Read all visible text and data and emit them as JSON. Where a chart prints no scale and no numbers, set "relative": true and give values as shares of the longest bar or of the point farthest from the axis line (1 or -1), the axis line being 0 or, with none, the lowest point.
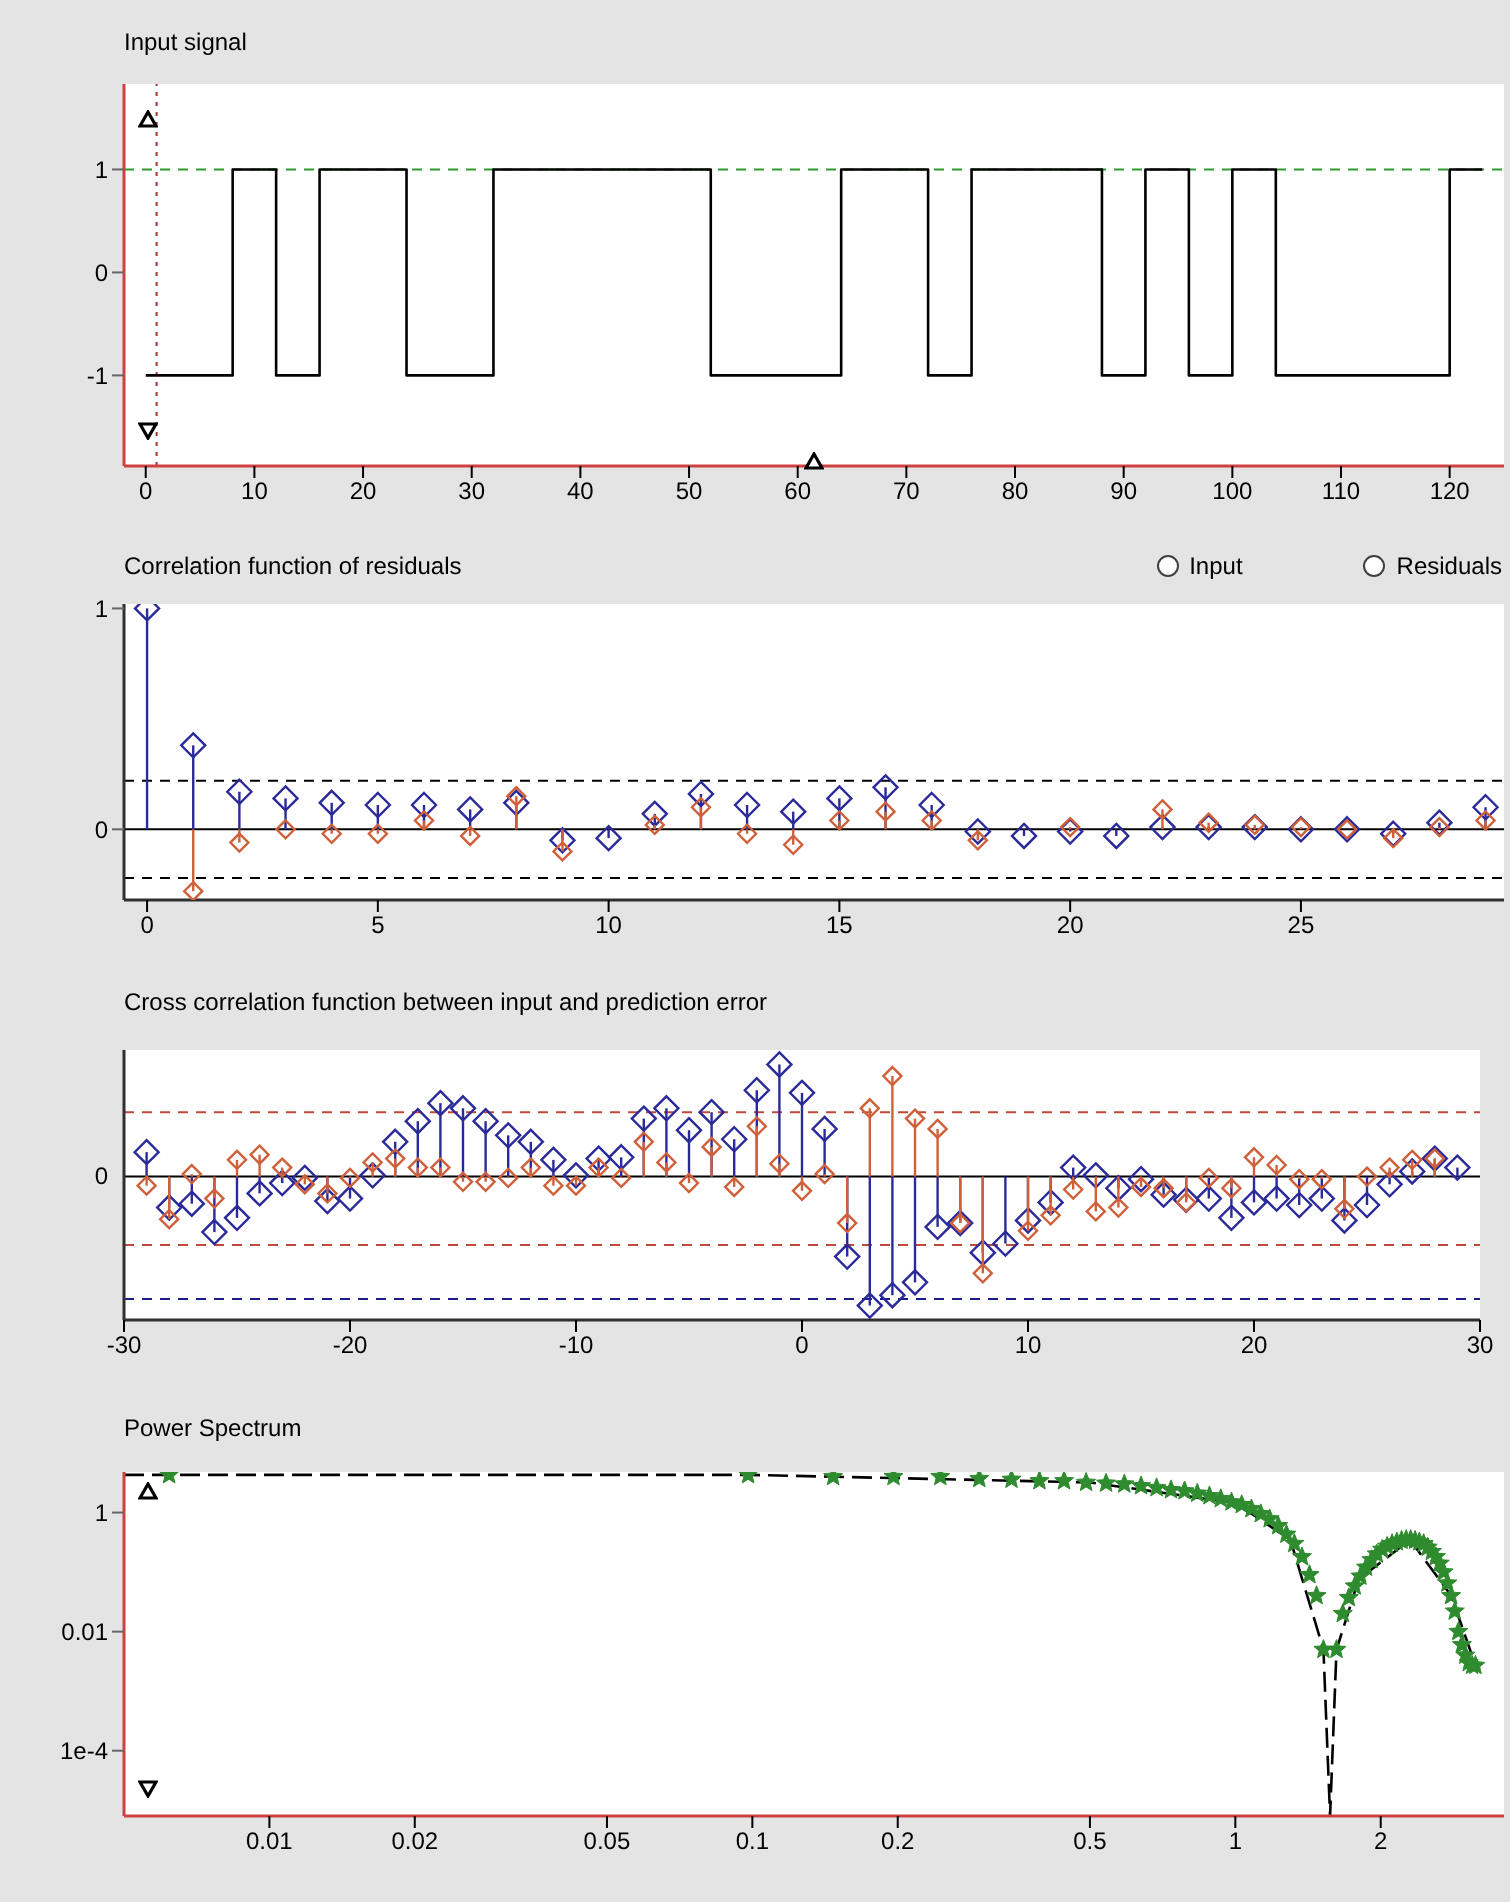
{
  "chart_data": [
    {
      "type": "step",
      "title": "Input signal",
      "x": [
        0,
        8,
        12,
        16,
        24,
        32,
        52,
        64,
        72,
        76,
        88,
        92,
        96,
        100,
        104,
        120,
        123
      ],
      "series": [
        {
          "color": "#000000",
          "values": [
            -1,
            1,
            -1,
            1,
            -1,
            1,
            -1,
            1,
            -1,
            1,
            -1,
            1,
            -1,
            1,
            -1,
            1,
            1
          ]
        }
      ],
      "xlim": [
        -2,
        125
      ],
      "xticks": [
        0,
        10,
        20,
        30,
        40,
        50,
        60,
        70,
        80,
        90,
        100,
        110,
        120
      ],
      "ylim": [
        -1.88,
        1.83
      ],
      "yticks": [
        -1,
        0,
        1
      ],
      "ref_lines": [
        {
          "axis": "y",
          "value": 1,
          "color": "#2e9a2e",
          "line_style": "dashed"
        },
        {
          "axis": "x",
          "value": 1,
          "color": "#b03030",
          "line_style": "dotted"
        }
      ]
    },
    {
      "type": "lollipop",
      "title": "Correlation function of residuals",
      "marker": "diamond",
      "x": [
        0,
        1,
        2,
        3,
        4,
        5,
        6,
        7,
        8,
        9,
        10,
        11,
        12,
        13,
        14,
        15,
        16,
        17,
        18,
        19,
        20,
        21,
        22,
        23,
        24,
        25,
        26,
        27,
        28,
        29
      ],
      "series": [
        {
          "color": "#2a2a9a",
          "values": [
            1.0,
            0.38,
            0.17,
            0.14,
            0.12,
            0.11,
            0.11,
            0.09,
            0.12,
            -0.05,
            -0.04,
            0.07,
            0.16,
            0.11,
            0.08,
            0.14,
            0.19,
            0.11,
            -0.01,
            -0.03,
            -0.01,
            -0.03,
            0.01,
            0.01,
            0.01,
            0,
            0,
            -0.02,
            0.03,
            0.1
          ]
        },
        {
          "color": "#d0603a",
          "values": [
            null,
            -0.28,
            -0.06,
            0,
            -0.02,
            -0.02,
            0.04,
            -0.03,
            0.15,
            -0.1,
            null,
            0.02,
            0.1,
            -0.02,
            -0.07,
            0.04,
            0.08,
            0.04,
            -0.05,
            null,
            0.01,
            null,
            0.09,
            0.03,
            0.02,
            0.01,
            0,
            -0.04,
            0.01,
            0.04
          ]
        }
      ],
      "xlim": [
        -0.5,
        29.4
      ],
      "xticks": [
        0,
        5,
        10,
        15,
        20,
        25
      ],
      "ylim": [
        -0.32,
        1.02
      ],
      "yticks": [
        0,
        1
      ],
      "ref_lines": [
        {
          "axis": "y",
          "value": 0,
          "color": "#000000"
        },
        {
          "axis": "y",
          "value": 0.22,
          "color": "#000000",
          "line_style": "dashed"
        },
        {
          "axis": "y",
          "value": -0.22,
          "color": "#000000",
          "line_style": "dashed"
        }
      ],
      "annotations": [
        "Input",
        "Residuals"
      ]
    },
    {
      "type": "lollipop",
      "title": "Cross correlation function between input and prediction error",
      "marker": "diamond",
      "relative": true,
      "x": [
        -29,
        -28,
        -27,
        -26,
        -25,
        -24,
        -23,
        -22,
        -21,
        -20,
        -19,
        -18,
        -17,
        -16,
        -15,
        -14,
        -13,
        -12,
        -11,
        -10,
        -9,
        -8,
        -7,
        -6,
        -5,
        -4,
        -3,
        -2,
        -1,
        0,
        1,
        2,
        3,
        4,
        5,
        6,
        7,
        8,
        9,
        10,
        11,
        12,
        13,
        14,
        15,
        16,
        17,
        18,
        19,
        20,
        21,
        22,
        23,
        24,
        25,
        26,
        27,
        28,
        29
      ],
      "series": [
        {
          "color": "#2a2a9a",
          "values": [
            0.19,
            -0.24,
            -0.21,
            -0.43,
            -0.32,
            -0.13,
            -0.05,
            -0.01,
            -0.19,
            -0.17,
            0.01,
            0.27,
            0.43,
            0.57,
            0.53,
            0.43,
            0.32,
            0.27,
            0.13,
            0.01,
            0.14,
            0.15,
            0.45,
            0.53,
            0.36,
            0.5,
            0.29,
            0.67,
            0.87,
            0.65,
            0.37,
            -0.62,
            -1,
            -0.92,
            -0.82,
            -0.39,
            -0.36,
            -0.59,
            -0.52,
            -0.34,
            -0.2,
            0.07,
            0.01,
            -0.09,
            -0.02,
            -0.14,
            -0.18,
            -0.17,
            -0.32,
            -0.2,
            -0.17,
            -0.22,
            -0.17,
            -0.34,
            -0.22,
            -0.06,
            0.04,
            0.14,
            0.07
          ]
        },
        {
          "color": "#d0603a",
          "values": [
            -0.07,
            -0.33,
            0.02,
            -0.17,
            0.13,
            0.17,
            0.07,
            -0.06,
            -0.13,
            -0.01,
            0.11,
            0.14,
            0.07,
            0.07,
            -0.04,
            -0.04,
            -0.01,
            0.07,
            -0.07,
            -0.07,
            0.07,
            -0.01,
            0.27,
            0.11,
            -0.05,
            0.23,
            -0.08,
            0.39,
            0.1,
            -0.11,
            0.02,
            -0.36,
            0.53,
            0.78,
            0.45,
            0.37,
            -0.36,
            -0.75,
            null,
            -0.42,
            -0.3,
            -0.1,
            -0.27,
            -0.24,
            -0.08,
            -0.09,
            -0.2,
            -0.01,
            -0.09,
            0.15,
            0.09,
            -0.02,
            -0.02,
            -0.25,
            0,
            0.07,
            0.13,
            0.14,
            null
          ]
        }
      ],
      "xlim": [
        -30,
        30
      ],
      "xticks": [
        -30,
        -20,
        -10,
        0,
        10,
        20,
        30
      ],
      "ref_lines": [
        {
          "axis": "y",
          "value": 0,
          "color": "#000000"
        },
        {
          "axis": "y",
          "value": 0.5,
          "color": "#c04a3a",
          "line_style": "dashed"
        },
        {
          "axis": "y",
          "value": -0.53,
          "color": "#c04a3a",
          "line_style": "dashed"
        },
        {
          "axis": "y",
          "value": -0.95,
          "color": "#1a1a8a",
          "line_style": "dashed"
        }
      ],
      "annotations": [
        "0"
      ]
    },
    {
      "type": "scatter",
      "title": "Power Spectrum",
      "log": "xy",
      "series": [
        {
          "color": "#000000",
          "type": "line",
          "line_style": "dashed",
          "x": [
            0.005,
            0.098,
            0.5,
            1.0,
            1.3,
            1.522,
            1.571,
            1.62,
            1.8,
            2.3,
            2.8,
            3.142
          ],
          "values": [
            4.3,
            4.3,
            3.2,
            1.45,
            0.35,
            0.005,
            8e-06,
            0.005,
            0.075,
            0.35,
            0.04,
            0.0027
          ]
        },
        {
          "color": "#2e8b2e",
          "marker": "star",
          "x": [
            0.0062,
            0.098,
            0.147,
            0.196,
            0.245,
            0.295,
            0.344,
            0.393,
            0.442,
            0.491,
            0.54,
            0.589,
            0.638,
            0.687,
            0.736,
            0.785,
            0.834,
            0.884,
            0.933,
            0.982,
            1.031,
            1.08,
            1.129,
            1.178,
            1.227,
            1.276,
            1.325,
            1.374,
            1.424,
            1.473,
            1.522,
            1.62,
            1.669,
            1.718,
            1.767,
            1.816,
            1.865,
            1.914,
            1.963,
            2.013,
            2.062,
            2.111,
            2.16,
            2.209,
            2.258,
            2.307,
            2.356,
            2.405,
            2.454,
            2.503,
            2.553,
            2.602,
            2.651,
            2.7,
            2.749,
            2.798,
            2.847,
            2.896,
            2.945,
            2.994,
            3.043,
            3.093,
            3.142
          ],
          "values": [
            4.3,
            4.3,
            4.0,
            4.0,
            4.0,
            3.7,
            3.6,
            3.4,
            3.4,
            3.2,
            3.1,
            3.0,
            2.8,
            2.6,
            2.4,
            2.3,
            2.1,
            1.9,
            1.7,
            1.5,
            1.35,
            1.15,
            0.95,
            0.78,
            0.6,
            0.43,
            0.3,
            0.18,
            0.09,
            0.04,
            0.005,
            0.005,
            0.02,
            0.037,
            0.058,
            0.085,
            0.12,
            0.16,
            0.2,
            0.24,
            0.27,
            0.3,
            0.32,
            0.34,
            0.35,
            0.35,
            0.34,
            0.32,
            0.3,
            0.26,
            0.22,
            0.18,
            0.14,
            0.1,
            0.065,
            0.04,
            0.022,
            0.01,
            0.006,
            0.004,
            0.003,
            0.0027,
            0.0027
          ]
        }
      ],
      "xlim": [
        0.005,
        3.6
      ],
      "xticks": [
        0.01,
        0.02,
        0.05,
        0.1,
        0.2,
        0.5,
        1,
        2
      ],
      "ylim": [
        8e-06,
        4.8
      ],
      "yticks": [
        1,
        0.01,
        {
          "value": 0.0001,
          "label": "1e-4"
        }
      ]
    }
  ]
}
